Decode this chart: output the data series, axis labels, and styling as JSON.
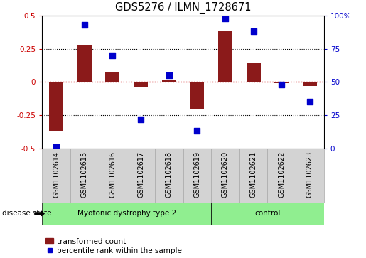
{
  "title": "GDS5276 / ILMN_1728671",
  "samples": [
    "GSM1102614",
    "GSM1102615",
    "GSM1102616",
    "GSM1102617",
    "GSM1102618",
    "GSM1102619",
    "GSM1102620",
    "GSM1102621",
    "GSM1102622",
    "GSM1102623"
  ],
  "transformed_count": [
    -0.37,
    0.28,
    0.07,
    -0.04,
    0.01,
    -0.2,
    0.38,
    0.14,
    -0.01,
    -0.03
  ],
  "percentile_rank": [
    1,
    93,
    70,
    22,
    55,
    13,
    98,
    88,
    48,
    35
  ],
  "group1_n": 6,
  "group2_n": 4,
  "group1_label": "Myotonic dystrophy type 2",
  "group2_label": "control",
  "group_color": "#90EE90",
  "bar_color": "#8B1A1A",
  "scatter_color": "#0000CC",
  "ylim_left": [
    -0.5,
    0.5
  ],
  "ylim_right": [
    0,
    100
  ],
  "yticks_left": [
    -0.5,
    -0.25,
    0.0,
    0.25,
    0.5
  ],
  "yticks_right": [
    0,
    25,
    50,
    75,
    100
  ],
  "ytick_labels_left": [
    "-0.5",
    "-0.25",
    "0",
    "0.25",
    "0.5"
  ],
  "ytick_labels_right": [
    "0",
    "25",
    "50",
    "75",
    "100%"
  ],
  "hline_dotted": [
    0.25,
    -0.25
  ],
  "hline_red_dotted": 0.0,
  "disease_state_label": "disease state",
  "legend_bar_label": "transformed count",
  "legend_scatter_label": "percentile rank within the sample",
  "bar_width": 0.5,
  "scatter_marker_size": 35,
  "cell_color": "#D3D3D3",
  "cell_edge_color": "#AAAAAA"
}
